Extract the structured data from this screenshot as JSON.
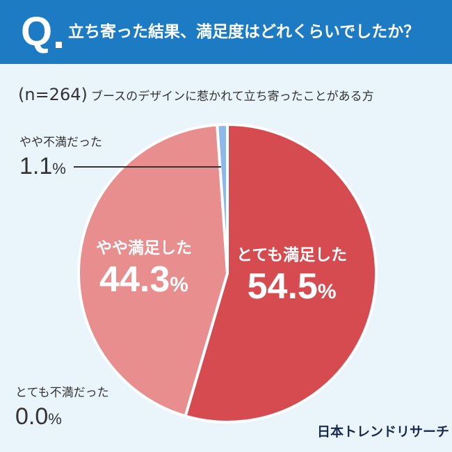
{
  "header": {
    "q_mark": "Q",
    "question": "立ち寄った結果、満足度はどれくらいでしたか？"
  },
  "subtitle": {
    "n": "(n=264)",
    "description": "ブースのデザインに惹かれて立ち寄ったことがある方"
  },
  "chart_data": {
    "type": "pie",
    "title": "立ち寄った結果、満足度はどれくらいでしたか？",
    "subtitle": "(n=264) ブースのデザインに惹かれて立ち寄ったことがある方",
    "slices": [
      {
        "label": "とても満足した",
        "value": 54.5,
        "display": "54.5",
        "color": "#d64b50"
      },
      {
        "label": "やや満足した",
        "value": 44.3,
        "display": "44.3",
        "color": "#e88e8e"
      },
      {
        "label": "やや不満だった",
        "value": 1.1,
        "display": "1.1",
        "color": "#8db8e8"
      },
      {
        "label": "とても不満だった",
        "value": 0.0,
        "display": "0.0",
        "color": "#3f6fc0"
      }
    ],
    "unit": "%"
  },
  "brand": "日本トレンドリサーチ"
}
